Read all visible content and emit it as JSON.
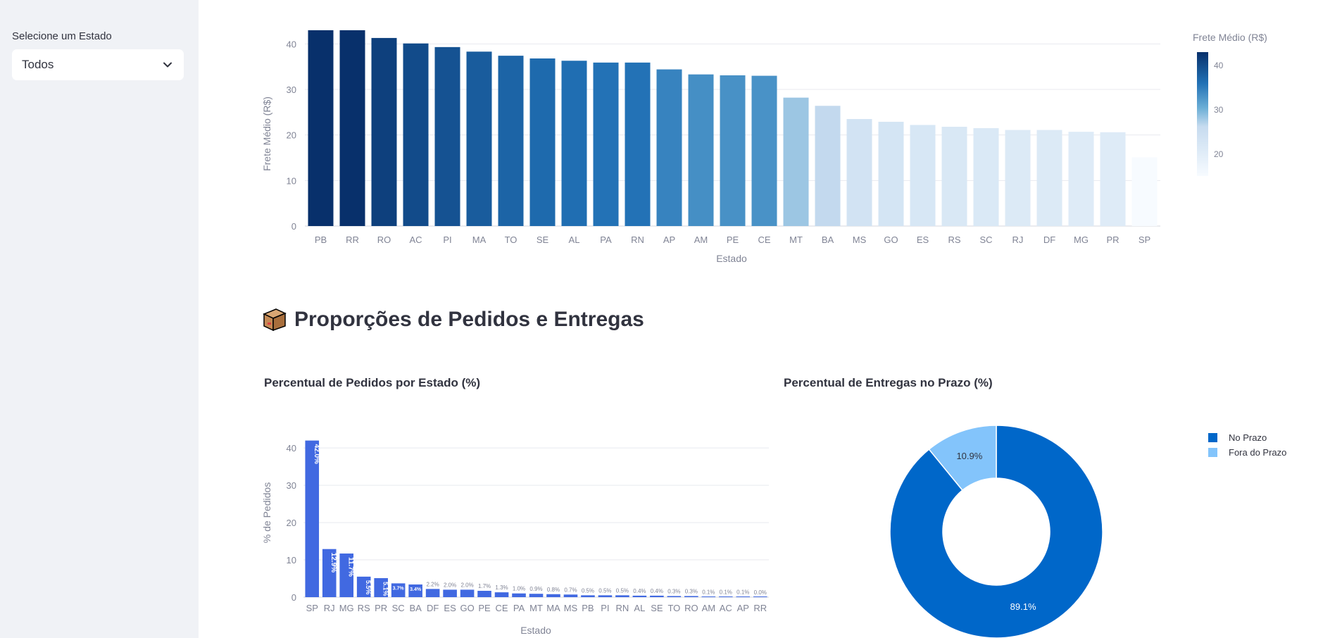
{
  "sidebar": {
    "select_label": "Selecione um Estado",
    "select_value": "Todos"
  },
  "section": {
    "title": "Proporções de Pedidos e Entregas",
    "icon": "package-box-icon"
  },
  "colors": {
    "bar_blue": "#4169e1",
    "donut_dark": "#0067c9",
    "donut_light": "#83c4fb",
    "text": "#31333f",
    "axis_text": "#808495",
    "sidebar_bg": "#f0f2f6"
  },
  "chart_data": [
    {
      "type": "bar",
      "categories": [
        "PB",
        "RR",
        "RO",
        "AC",
        "PI",
        "MA",
        "TO",
        "SE",
        "AL",
        "PA",
        "RN",
        "AP",
        "AM",
        "PE",
        "CE",
        "MT",
        "BA",
        "MS",
        "GO",
        "ES",
        "RS",
        "SC",
        "RJ",
        "DF",
        "MG",
        "PR",
        "SP"
      ],
      "values": [
        43.0,
        43.0,
        41.3,
        40.1,
        39.3,
        38.3,
        37.4,
        36.8,
        36.3,
        35.9,
        35.9,
        34.4,
        33.3,
        33.1,
        33.0,
        28.2,
        26.4,
        23.5,
        22.9,
        22.2,
        21.8,
        21.5,
        21.1,
        21.1,
        20.7,
        20.6,
        15.1
      ],
      "xlabel": "Estado",
      "ylabel": "Frete Médio (R$)",
      "ylim": [
        0,
        45
      ],
      "yticks": [
        0,
        10,
        20,
        30,
        40
      ],
      "grid": true,
      "colorbar": {
        "title": "Frete Médio (R$)",
        "ticks": [
          20,
          30,
          40
        ],
        "range": [
          15.1,
          43.0
        ]
      }
    },
    {
      "type": "bar",
      "title": "Percentual de Pedidos por Estado (%)",
      "categories": [
        "SP",
        "RJ",
        "MG",
        "RS",
        "PR",
        "SC",
        "BA",
        "DF",
        "ES",
        "GO",
        "PE",
        "CE",
        "PA",
        "MT",
        "MA",
        "MS",
        "PB",
        "PI",
        "RN",
        "AL",
        "SE",
        "TO",
        "RO",
        "AM",
        "AC",
        "AP",
        "RR"
      ],
      "values": [
        42.0,
        12.9,
        11.7,
        5.5,
        5.1,
        3.7,
        3.4,
        2.2,
        2.0,
        2.0,
        1.7,
        1.3,
        1.0,
        0.9,
        0.8,
        0.7,
        0.5,
        0.5,
        0.5,
        0.4,
        0.4,
        0.3,
        0.3,
        0.1,
        0.1,
        0.1,
        0.0
      ],
      "labels": [
        "42.0%",
        "12.9%",
        "11.7%",
        "5.5%",
        "5.1%",
        "3.7%",
        "3.4%",
        "2.2%",
        "2.0%",
        "2.0%",
        "1.7%",
        "1.3%",
        "1.0%",
        "0.9%",
        "0.8%",
        "0.7%",
        "0.5%",
        "0.5%",
        "0.5%",
        "0.4%",
        "0.4%",
        "0.3%",
        "0.3%",
        "0.1%",
        "0.1%",
        "0.1%",
        "0.0%"
      ],
      "xlabel": "Estado",
      "ylabel": "% de Pedidos",
      "ylim": [
        0,
        44
      ],
      "yticks": [
        0,
        10,
        20,
        30,
        40
      ],
      "grid": true
    },
    {
      "type": "pie",
      "title": "Percentual de Entregas no Prazo (%)",
      "labels": [
        "No Prazo",
        "Fora do Prazo"
      ],
      "values": [
        89.1,
        10.9
      ],
      "text": [
        "89.1%",
        "10.9%"
      ],
      "hole": true,
      "legend": "top-right"
    }
  ]
}
